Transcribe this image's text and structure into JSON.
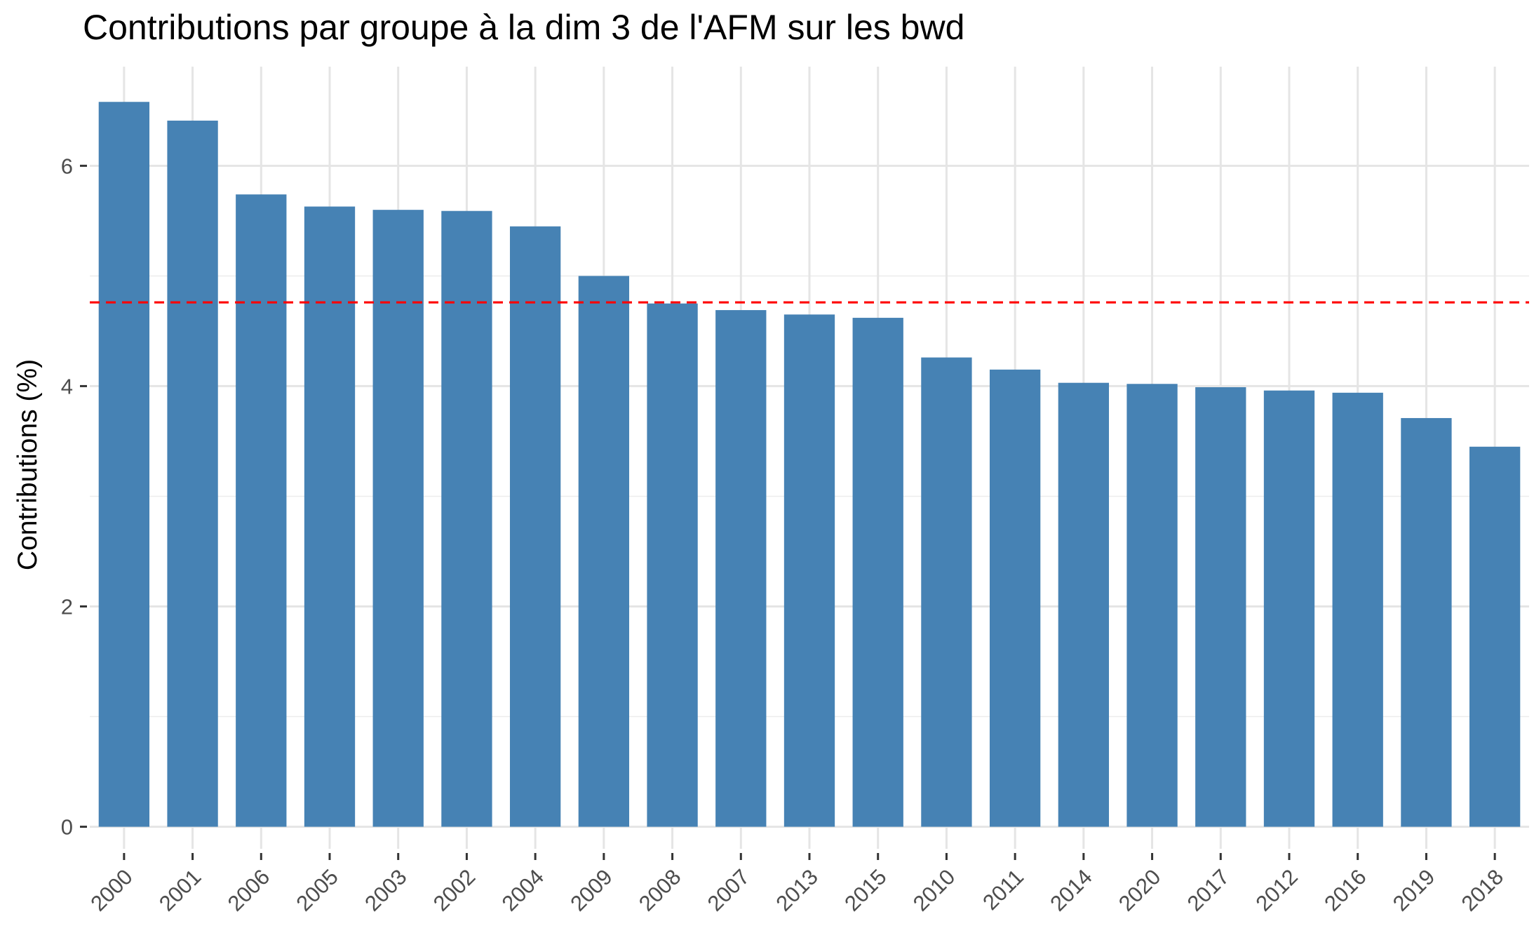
{
  "chart_data": {
    "type": "bar",
    "title": "Contributions par groupe à la dim 3 de l'AFM sur les bwd",
    "xlabel": "",
    "ylabel": "Contributions (%)",
    "categories": [
      "2000",
      "2001",
      "2006",
      "2005",
      "2003",
      "2002",
      "2004",
      "2009",
      "2008",
      "2007",
      "2013",
      "2015",
      "2010",
      "2011",
      "2014",
      "2020",
      "2017",
      "2012",
      "2016",
      "2019",
      "2018"
    ],
    "values": [
      6.58,
      6.41,
      5.74,
      5.63,
      5.6,
      5.59,
      5.45,
      5.0,
      4.75,
      4.69,
      4.65,
      4.62,
      4.26,
      4.15,
      4.03,
      4.02,
      3.99,
      3.96,
      3.94,
      3.71,
      3.45
    ],
    "ylim": [
      -0.2,
      6.9
    ],
    "yticks": [
      0,
      2,
      4,
      6
    ],
    "reference_line": {
      "value": 4.76,
      "style": "dashed",
      "color": "#ff0000"
    },
    "bar_color": "#4682b4",
    "grid": true,
    "legend": "none"
  }
}
